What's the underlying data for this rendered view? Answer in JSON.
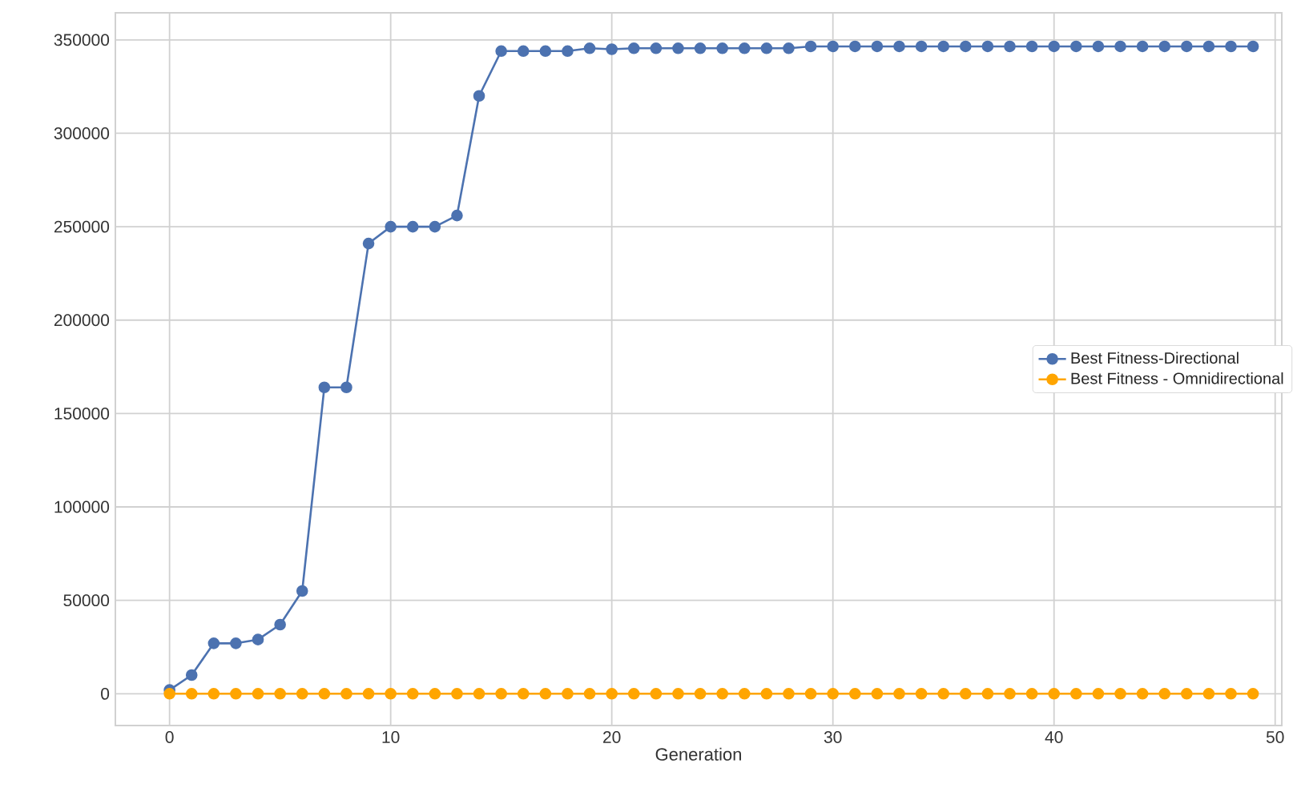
{
  "chart_data": {
    "type": "line",
    "xlabel": "Generation",
    "x": [
      0,
      1,
      2,
      3,
      4,
      5,
      6,
      7,
      8,
      9,
      10,
      11,
      12,
      13,
      14,
      15,
      16,
      17,
      18,
      19,
      20,
      21,
      22,
      23,
      24,
      25,
      26,
      27,
      28,
      29,
      30,
      31,
      32,
      33,
      34,
      35,
      36,
      37,
      38,
      39,
      40,
      41,
      42,
      43,
      44,
      45,
      46,
      47,
      48,
      49
    ],
    "series": [
      {
        "name": "Best Fitness-Directional",
        "color": "#4c72b0",
        "values": [
          2000,
          10000,
          27000,
          27000,
          29000,
          37000,
          55000,
          164000,
          164000,
          241000,
          250000,
          250000,
          250000,
          256000,
          320000,
          344000,
          344000,
          344000,
          344000,
          345500,
          345000,
          345500,
          345500,
          345500,
          345500,
          345500,
          345500,
          345500,
          345500,
          346500,
          346500,
          346500,
          346500,
          346500,
          346500,
          346500,
          346500,
          346500,
          346500,
          346500,
          346500,
          346500,
          346500,
          346500,
          346500,
          346500,
          346500,
          346500,
          346500,
          346500
        ]
      },
      {
        "name": "Best Fitness - Omnidirectional",
        "color": "#ffa500",
        "values": [
          0,
          0,
          0,
          0,
          0,
          0,
          0,
          0,
          0,
          0,
          0,
          0,
          0,
          0,
          0,
          0,
          0,
          0,
          0,
          0,
          0,
          0,
          0,
          0,
          0,
          0,
          0,
          0,
          0,
          0,
          0,
          0,
          0,
          0,
          0,
          0,
          0,
          0,
          0,
          0,
          0,
          0,
          0,
          0,
          0,
          0,
          0,
          0,
          0,
          0
        ]
      }
    ],
    "xlim": [
      -2.45,
      50.3
    ],
    "ylim": [
      -17000,
      364500
    ],
    "xticks": [
      0,
      10,
      20,
      30,
      40,
      50
    ],
    "yticks": [
      0,
      50000,
      100000,
      150000,
      200000,
      250000,
      300000,
      350000
    ],
    "grid": true,
    "legend": "right",
    "marker": "circle",
    "line_style": "solid"
  }
}
